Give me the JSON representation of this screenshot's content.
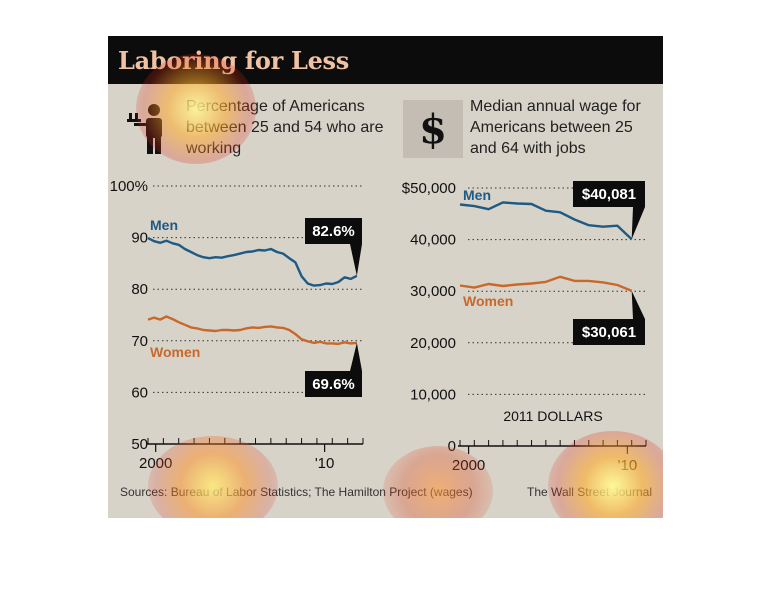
{
  "title": "Laboring for Less",
  "left_panel": {
    "subhead": "Percentage of Americans between 25 and 54 who are working",
    "icon": "worker-with-tray-icon"
  },
  "right_panel": {
    "subhead": "Median annual wage for Americans between 25 and 64 with jobs",
    "icon": "dollar-sign-icon"
  },
  "footer": {
    "source": "Sources: Bureau of Labor Statistics; The Hamilton Project (wages)",
    "credit": "The Wall Street Journal"
  },
  "colors": {
    "men": "#1f5a85",
    "women": "#c8682a",
    "background": "#d8d3c8",
    "title_bar": "#0c0c0c",
    "title_text": "#f1c2a2"
  },
  "chart_data": [
    {
      "type": "line",
      "title": "Percentage of Americans between 25 and 54 who are working",
      "y_ticks": [
        "100%",
        "90",
        "80",
        "70",
        "60",
        "50"
      ],
      "x_ticks": [
        "2000",
        "'10"
      ],
      "ylim": [
        50,
        100
      ],
      "xlim": [
        1999,
        2013
      ],
      "grid": true,
      "series": [
        {
          "name": "Men",
          "color": "#1f5a85",
          "callout": "82.6%",
          "x": [
            1999.0,
            1999.4,
            1999.8,
            2000.2,
            2000.6,
            2001.0,
            2001.4,
            2001.8,
            2002.2,
            2002.6,
            2003.0,
            2003.4,
            2003.8,
            2004.2,
            2004.6,
            2005.0,
            2005.4,
            2005.8,
            2006.2,
            2006.6,
            2007.0,
            2007.4,
            2007.8,
            2008.2,
            2008.6,
            2009.0,
            2009.4,
            2009.8,
            2010.2,
            2010.6,
            2011.0,
            2011.4,
            2011.8,
            2012.2,
            2012.6
          ],
          "y": [
            89.9,
            89.3,
            89.0,
            89.4,
            88.9,
            88.6,
            87.8,
            87.2,
            86.6,
            86.2,
            86.0,
            86.2,
            86.1,
            86.4,
            86.6,
            86.9,
            87.2,
            87.3,
            87.6,
            87.5,
            87.8,
            87.2,
            86.9,
            86.0,
            85.2,
            82.5,
            81.1,
            80.7,
            80.8,
            81.1,
            81.0,
            81.4,
            82.3,
            82.0,
            82.6
          ]
        },
        {
          "name": "Women",
          "color": "#c8682a",
          "callout": "69.6%",
          "x": [
            1999.0,
            1999.4,
            1999.8,
            2000.2,
            2000.6,
            2001.0,
            2001.4,
            2001.8,
            2002.2,
            2002.6,
            2003.0,
            2003.4,
            2003.8,
            2004.2,
            2004.6,
            2005.0,
            2005.4,
            2005.8,
            2006.2,
            2006.6,
            2007.0,
            2007.4,
            2007.8,
            2008.2,
            2008.6,
            2009.0,
            2009.4,
            2009.8,
            2010.2,
            2010.6,
            2011.0,
            2011.4,
            2011.8,
            2012.2,
            2012.6
          ],
          "y": [
            74.1,
            74.5,
            74.1,
            74.7,
            74.2,
            73.6,
            73.1,
            72.6,
            72.4,
            72.1,
            72.0,
            71.9,
            72.1,
            72.1,
            72.0,
            72.1,
            72.4,
            72.6,
            72.5,
            72.7,
            72.8,
            72.6,
            72.5,
            72.1,
            71.3,
            70.3,
            69.9,
            69.6,
            69.8,
            69.5,
            69.5,
            69.4,
            69.7,
            69.5,
            69.6
          ]
        }
      ]
    },
    {
      "type": "line",
      "title": "Median annual wage for Americans between 25 and 64 with jobs",
      "y_ticks": [
        "$50,000",
        "40,000",
        "30,000",
        "20,000",
        "10,000",
        "0"
      ],
      "x_ticks": [
        "2000",
        "'10"
      ],
      "annotation": "2011 DOLLARS",
      "ylim": [
        0,
        50000
      ],
      "xlim": [
        1999,
        2012
      ],
      "grid": true,
      "series": [
        {
          "name": "Men",
          "color": "#1f5a85",
          "callout": "$40,081",
          "x": [
            1999,
            2000,
            2001,
            2002,
            2003,
            2004,
            2005,
            2006,
            2007,
            2008,
            2009,
            2010,
            2011
          ],
          "y": [
            46800,
            46500,
            45900,
            47200,
            47000,
            46900,
            45600,
            45300,
            43900,
            42800,
            42500,
            42700,
            40081
          ]
        },
        {
          "name": "Women",
          "color": "#c8682a",
          "callout": "$30,061",
          "x": [
            1999,
            2000,
            2001,
            2002,
            2003,
            2004,
            2005,
            2006,
            2007,
            2008,
            2009,
            2010,
            2011
          ],
          "y": [
            31100,
            30700,
            31400,
            31000,
            31300,
            31500,
            31800,
            32800,
            32000,
            32000,
            31700,
            31200,
            30061
          ]
        }
      ]
    }
  ]
}
